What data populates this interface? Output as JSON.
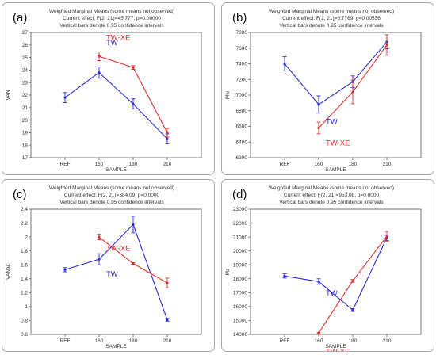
{
  "colors": {
    "TW": "#2b2bd9",
    "TW-XE": "#e03030",
    "frame": "#555555"
  },
  "chart_data": [
    {
      "panel": "(a)",
      "type": "line",
      "title": "Weighted Marginal Means (some means not observed)",
      "subtitle1": "Current effect: F(2, 21)=45.777, p=0.00000",
      "subtitle2": "Vertical bars denote 0.95 confidence intervals",
      "xlabel": "SAMPLE",
      "ylabel": "VAN",
      "categories": [
        "REF",
        "160",
        "180",
        "210"
      ],
      "ylim": [
        17,
        27
      ],
      "yticks": [
        17,
        18,
        19,
        20,
        21,
        22,
        23,
        24,
        25,
        26,
        27
      ],
      "label_dy": [
        2.2,
        1.3
      ],
      "series": [
        {
          "name": "TW",
          "values": [
            21.8,
            23.8,
            21.3,
            18.5
          ],
          "errors": [
            0.4,
            0.45,
            0.4,
            0.4
          ]
        },
        {
          "name": "TW-XE",
          "values": [
            null,
            25.1,
            24.2,
            19.0
          ],
          "errors": [
            null,
            0.35,
            0.15,
            0.35
          ]
        }
      ]
    },
    {
      "panel": "(b)",
      "type": "line",
      "title": "Weighted Marginal Means (some means not observed)",
      "subtitle1": "Current effect: F(2, 21)=6.7769, p=0.00536",
      "subtitle2": "Vertical bars denote 0.95 confidence intervals",
      "xlabel": "SAMPLE",
      "ylabel": "Mw",
      "categories": [
        "REF",
        "160",
        "180",
        "210"
      ],
      "ylim": [
        6200,
        7800
      ],
      "yticks": [
        6200,
        6400,
        6600,
        6800,
        7000,
        7200,
        7400,
        7600,
        7800
      ],
      "label_dy": [
        -250,
        -225
      ],
      "series": [
        {
          "name": "TW",
          "values": [
            7400,
            6880,
            7170,
            7680
          ],
          "errors": [
            90,
            110,
            75,
            90
          ]
        },
        {
          "name": "TW-XE",
          "values": [
            null,
            6580,
            7040,
            7640
          ],
          "errors": [
            null,
            75,
            150,
            130
          ]
        }
      ]
    },
    {
      "panel": "(c)",
      "type": "line",
      "title": "Weighted Marginal Means (some means not observed)",
      "subtitle1": "Current effect: F(2, 21)=384.09, p=0.0000",
      "subtitle2": "Vertical bars denote 0.95 confidence intervals",
      "xlabel": "SAMPLE",
      "ylabel": "VANac",
      "categories": [
        "REF",
        "160",
        "180",
        "210"
      ],
      "ylim": [
        0.6,
        2.4
      ],
      "yticks": [
        0.6,
        0.8,
        1.0,
        1.2,
        1.4,
        1.6,
        1.8,
        2.0,
        2.2,
        2.4
      ],
      "label_dy": [
        -0.25,
        -0.2
      ],
      "series": [
        {
          "name": "TW",
          "values": [
            1.53,
            1.68,
            2.18,
            0.81
          ],
          "errors": [
            0.03,
            0.08,
            0.12,
            0.02
          ]
        },
        {
          "name": "TW-XE",
          "values": [
            null,
            2.0,
            1.62,
            1.34
          ],
          "errors": [
            null,
            0.04,
            0.01,
            0.07
          ]
        }
      ]
    },
    {
      "panel": "(d)",
      "type": "line",
      "title": "Weighted Marginal Means (some means not observed)",
      "subtitle1": "Current effect: F(2, 21)=953.08, p=0.0000",
      "subtitle2": "Vertical bars denote 0.95 confidence intervals",
      "xlabel": "SAMPLE",
      "ylabel": "Mz",
      "categories": [
        "REF",
        "160",
        "180",
        "210"
      ],
      "ylim": [
        14000,
        23000
      ],
      "yticks": [
        14000,
        15000,
        16000,
        17000,
        18000,
        19000,
        20000,
        21000,
        22000,
        23000
      ],
      "label_dy": [
        -1000,
        -1500
      ],
      "series": [
        {
          "name": "TW",
          "values": [
            18200,
            17800,
            15750,
            20950
          ],
          "errors": [
            150,
            200,
            100,
            200
          ]
        },
        {
          "name": "TW-XE",
          "values": [
            null,
            14100,
            17850,
            21050
          ],
          "errors": [
            null,
            50,
            100,
            350
          ]
        }
      ]
    }
  ]
}
